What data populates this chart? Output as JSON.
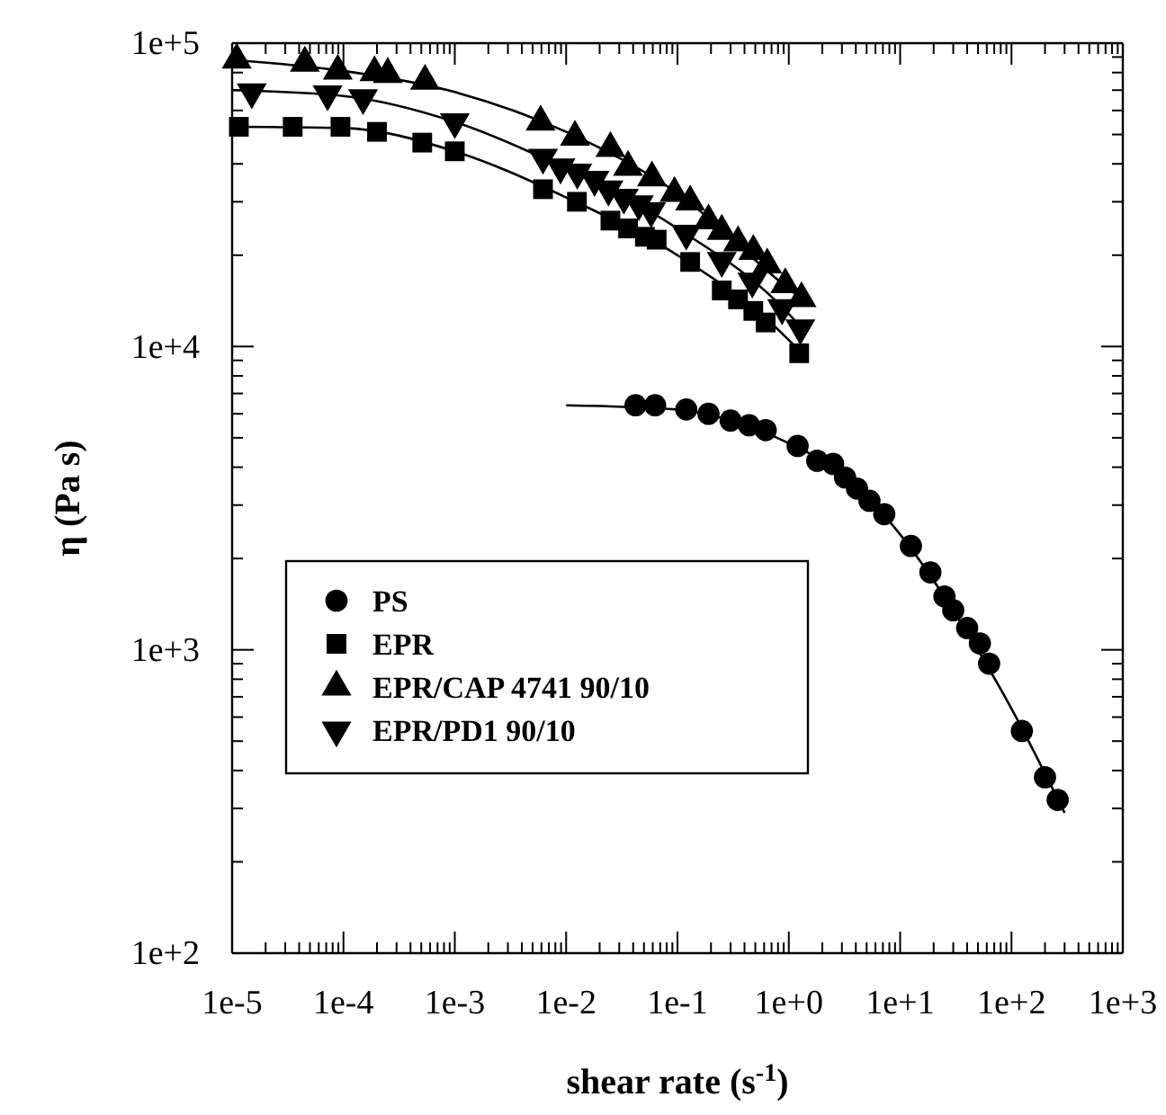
{
  "chart_data": {
    "type": "scatter",
    "xlabel": "shear rate (s$^{-1}$)",
    "ylabel": "η (Pa s)",
    "log": "xy",
    "legend": "bottom left",
    "xlim": [
      1e-05,
      1000
    ],
    "ylim": [
      100,
      100000
    ],
    "xticks": [
      {
        "value": 1e-05,
        "label": "1e-5"
      },
      {
        "value": 0.0001,
        "label": "1e-4"
      },
      {
        "value": 0.001,
        "label": "1e-3"
      },
      {
        "value": 0.01,
        "label": "1e-2"
      },
      {
        "value": 0.1,
        "label": "1e-1"
      },
      {
        "value": 1,
        "label": "1e+0"
      },
      {
        "value": 10,
        "label": "1e+1"
      },
      {
        "value": 100,
        "label": "1e+2"
      },
      {
        "value": 1000,
        "label": "1e+3"
      }
    ],
    "yticks": [
      {
        "value": 100,
        "label": "1e+2"
      },
      {
        "value": 1000,
        "label": "1e+3"
      },
      {
        "value": 10000,
        "label": "1e+4"
      },
      {
        "value": 100000,
        "label": "1e+5"
      }
    ],
    "series": [
      {
        "type": "line",
        "marker": "none",
        "color": "#000000",
        "x": [
          0.01,
          0.1,
          0.3,
          1,
          3,
          10,
          30,
          100,
          300
        ],
        "values": [
          6400,
          6200,
          5700,
          4800,
          3800,
          2400,
          1350,
          640,
          290
        ]
      },
      {
        "type": "line",
        "marker": "none",
        "color": "#000000",
        "x": [
          1e-05,
          0.0001,
          0.001,
          0.01,
          0.1,
          1,
          1.3
        ],
        "values": [
          53000,
          52500,
          44000,
          31000,
          20000,
          10500,
          9500
        ]
      },
      {
        "type": "line",
        "marker": "none",
        "color": "#000000",
        "x": [
          1e-05,
          0.0001,
          0.001,
          0.01,
          0.1,
          1,
          1.3
        ],
        "values": [
          88000,
          81000,
          69000,
          51000,
          32000,
          15500,
          14400
        ]
      },
      {
        "type": "line",
        "marker": "none",
        "color": "#000000",
        "x": [
          1e-05,
          0.0001,
          0.001,
          0.01,
          0.1,
          1,
          1.3
        ],
        "values": [
          70000,
          67000,
          55000,
          38500,
          24500,
          12800,
          11500
        ]
      },
      {
        "name": "PS",
        "marker": "circle",
        "color": "#000000",
        "x": [
          0.042,
          0.063,
          0.12,
          0.19,
          0.3,
          0.44,
          0.62,
          1.2,
          1.8,
          2.5,
          3.2,
          4.1,
          5.3,
          7.2,
          12.5,
          18.7,
          25,
          30,
          40,
          52,
          63,
          124,
          200,
          260
        ],
        "values": [
          6400,
          6400,
          6200,
          6000,
          5700,
          5500,
          5300,
          4700,
          4200,
          4100,
          3700,
          3400,
          3100,
          2800,
          2200,
          1800,
          1500,
          1350,
          1180,
          1050,
          900,
          540,
          380,
          320
        ]
      },
      {
        "name": "EPR",
        "marker": "square",
        "color": "#000000",
        "x": [
          1.15e-05,
          3.5e-05,
          9.4e-05,
          0.0002,
          0.00051,
          0.001,
          0.0062,
          0.0125,
          0.025,
          0.036,
          0.051,
          0.065,
          0.13,
          0.25,
          0.35,
          0.48,
          0.62,
          1.24
        ],
        "values": [
          53000,
          53000,
          53000,
          51000,
          47000,
          44000,
          33000,
          30000,
          26000,
          24500,
          23000,
          22500,
          19000,
          15300,
          14300,
          13100,
          12000,
          9500
        ]
      },
      {
        "name": "EPR/CAP 4741 90/10",
        "marker": "triangle",
        "color": "#000000",
        "x": [
          1.1e-05,
          4.5e-05,
          8.9e-05,
          0.00019,
          0.00025,
          0.00054,
          0.0059,
          0.012,
          0.025,
          0.036,
          0.059,
          0.094,
          0.13,
          0.19,
          0.25,
          0.35,
          0.48,
          0.64,
          0.93,
          1.3
        ],
        "values": [
          88000,
          86000,
          81000,
          80000,
          79000,
          75000,
          55000,
          49000,
          45000,
          39000,
          36000,
          32000,
          30000,
          26000,
          24000,
          22000,
          20600,
          18600,
          16000,
          14400
        ]
      },
      {
        "name": "EPR/PD1 90/10",
        "marker": "triangle-down",
        "color": "#000000",
        "x": [
          1.5e-05,
          7.2e-05,
          0.00015,
          0.001,
          0.0062,
          0.0089,
          0.0126,
          0.018,
          0.024,
          0.033,
          0.045,
          0.058,
          0.12,
          0.25,
          0.47,
          0.87,
          1.27
        ],
        "values": [
          69000,
          68000,
          66000,
          55000,
          42000,
          39000,
          37500,
          35500,
          33000,
          31000,
          29500,
          28000,
          23600,
          19200,
          16400,
          13400,
          11500
        ]
      }
    ]
  }
}
